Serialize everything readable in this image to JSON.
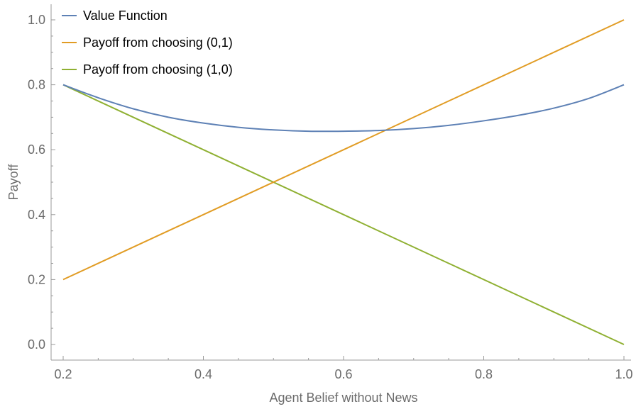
{
  "chart_data": {
    "type": "line",
    "title": "",
    "xlabel": "Agent Belief without News",
    "ylabel": "Payoff",
    "xlim": [
      0.2,
      1.0
    ],
    "ylim": [
      0.0,
      1.0
    ],
    "xticks": [
      "0.2",
      "0.4",
      "0.6",
      "0.8",
      "1.0"
    ],
    "yticks": [
      "0.0",
      "0.2",
      "0.4",
      "0.6",
      "0.8",
      "1.0"
    ],
    "grid": false,
    "legend_position": "top-left",
    "series": [
      {
        "name": "Value Function",
        "color": "#5e81b5",
        "x": [
          0.2,
          0.25,
          0.3,
          0.35,
          0.4,
          0.45,
          0.5,
          0.55,
          0.6,
          0.65,
          0.7,
          0.75,
          0.8,
          0.85,
          0.9,
          0.95,
          1.0
        ],
        "y": [
          0.8,
          0.76,
          0.726,
          0.7,
          0.682,
          0.669,
          0.661,
          0.657,
          0.657,
          0.659,
          0.665,
          0.675,
          0.689,
          0.706,
          0.728,
          0.758,
          0.8
        ]
      },
      {
        "name": "Payoff from choosing (0,1)",
        "color": "#e19c24",
        "x": [
          0.2,
          1.0
        ],
        "y": [
          0.2,
          1.0
        ]
      },
      {
        "name": "Payoff from choosing (1,0)",
        "color": "#8fb032",
        "x": [
          0.2,
          1.0
        ],
        "y": [
          0.8,
          0.0
        ]
      }
    ]
  }
}
